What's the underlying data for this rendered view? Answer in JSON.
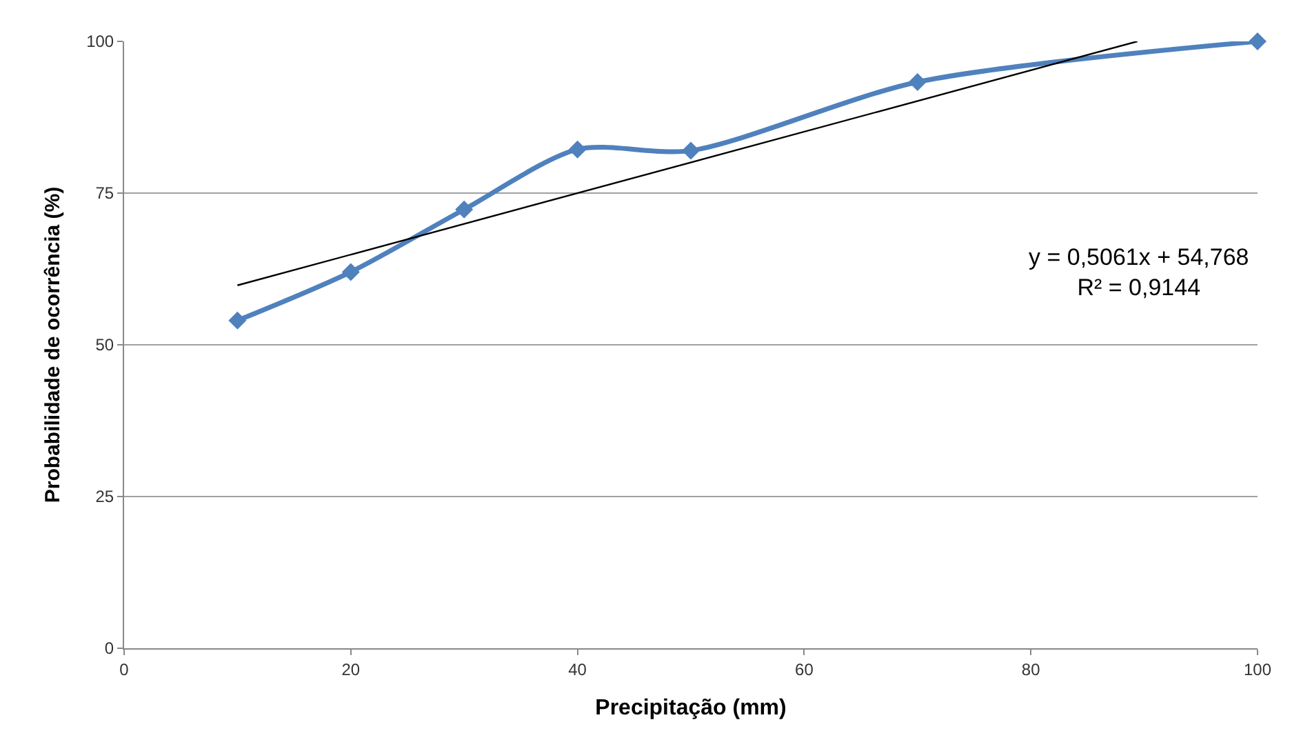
{
  "chart_data": {
    "type": "line",
    "xlabel": "Precipitação (mm)",
    "ylabel": "Probabilidade de ocorrência (%)",
    "xlim": [
      0,
      100
    ],
    "xticks": [
      0,
      20,
      40,
      60,
      80,
      100
    ],
    "ylim": [
      0,
      100
    ],
    "yticks": [
      0,
      25,
      50,
      75,
      100
    ],
    "grid": "y",
    "marker": "diamond",
    "line_style": "solid",
    "x": [
      10,
      20,
      30,
      40,
      50,
      70,
      100
    ],
    "series": [
      {
        "color": "#4f81bd",
        "values": [
          54,
          62,
          72.3,
          82.2,
          82,
          93.3,
          100
        ]
      },
      {
        "color": "#000000",
        "x": [
          10,
          89.4
        ],
        "values": [
          59.8,
          100
        ],
        "marker": "none"
      }
    ],
    "annotations": [
      "y = 0,5061x + 54,768\nR² = 0,9144"
    ]
  }
}
